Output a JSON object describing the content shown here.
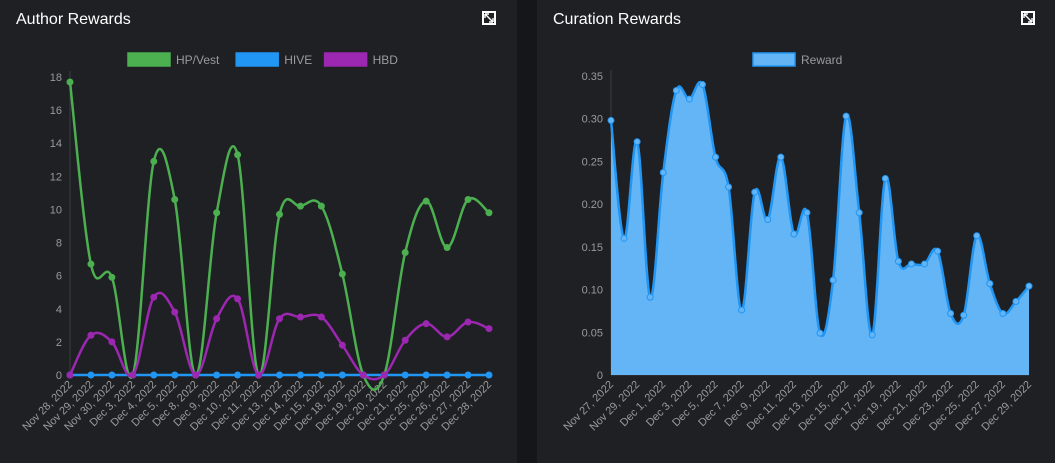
{
  "colors": {
    "hp_vest": "#4caf50",
    "hive": "#2196f3",
    "hbd": "#9c27b0",
    "reward": "#64b5f6",
    "reward_line": "#2196f3",
    "axis": "#3a3b40",
    "tick_text": "#9a9a9a"
  },
  "author_panel": {
    "title": "Author Rewards",
    "expand_icon": "expand-icon"
  },
  "curation_panel": {
    "title": "Curation Rewards",
    "expand_icon": "expand-icon"
  },
  "chart_data": [
    {
      "type": "line",
      "title": "Author Rewards",
      "legend_position": "top-center",
      "categories": [
        "Nov 28, 2022",
        "Nov 29, 2022",
        "Nov 30, 2022",
        "Dec 3, 2022",
        "Dec 4, 2022",
        "Dec 5, 2022",
        "Dec 8, 2022",
        "Dec 9, 2022",
        "Dec 10, 2022",
        "Dec 11, 2022",
        "Dec 13, 2022",
        "Dec 14, 2022",
        "Dec 15, 2022",
        "Dec 18, 2022",
        "Dec 19, 2022",
        "Dec 20, 2022",
        "Dec 21, 2022",
        "Dec 25, 2022",
        "Dec 26, 2022",
        "Dec 27, 2022",
        "Dec 28, 2022"
      ],
      "ylim": [
        0,
        18
      ],
      "yticks": [
        0,
        2,
        4,
        6,
        8,
        10,
        12,
        14,
        16,
        18
      ],
      "grid": false,
      "series": [
        {
          "name": "HP/Vest",
          "values": [
            17.7,
            6.7,
            5.9,
            0,
            12.9,
            10.6,
            0,
            9.8,
            13.3,
            0,
            9.7,
            10.2,
            10.2,
            6.1,
            0,
            0,
            7.4,
            10.5,
            7.7,
            10.6,
            9.8
          ]
        },
        {
          "name": "HIVE",
          "values": [
            0,
            0,
            0,
            0,
            0,
            0,
            0,
            0,
            0,
            0,
            0,
            0,
            0,
            0,
            0,
            0,
            0,
            0,
            0,
            0,
            0
          ]
        },
        {
          "name": "HBD",
          "values": [
            0,
            2.4,
            2.0,
            0,
            4.7,
            3.8,
            0,
            3.4,
            4.6,
            0,
            3.4,
            3.5,
            3.5,
            1.8,
            0,
            0,
            2.1,
            3.1,
            2.3,
            3.2,
            2.8
          ]
        }
      ]
    },
    {
      "type": "area",
      "title": "Curation Rewards",
      "legend_position": "top-center",
      "categories": [
        "Nov 27, 2022",
        "Nov 28, 2022",
        "Nov 29, 2022",
        "Nov 30, 2022",
        "Dec 1, 2022",
        "Dec 2, 2022",
        "Dec 3, 2022",
        "Dec 4, 2022",
        "Dec 5, 2022",
        "Dec 6, 2022",
        "Dec 7, 2022",
        "Dec 8, 2022",
        "Dec 9, 2022",
        "Dec 10, 2022",
        "Dec 11, 2022",
        "Dec 12, 2022",
        "Dec 13, 2022",
        "Dec 14, 2022",
        "Dec 15, 2022",
        "Dec 16, 2022",
        "Dec 17, 2022",
        "Dec 18, 2022",
        "Dec 19, 2022",
        "Dec 20, 2022",
        "Dec 21, 2022",
        "Dec 22, 2022",
        "Dec 23, 2022",
        "Dec 24, 2022",
        "Dec 25, 2022",
        "Dec 26, 2022",
        "Dec 27, 2022",
        "Dec 28, 2022",
        "Dec 29, 2022"
      ],
      "tick_labels_shown_every": 2,
      "ylim": [
        0,
        0.35
      ],
      "yticks": [
        0,
        0.05,
        0.1,
        0.15,
        0.2,
        0.25,
        0.3,
        0.35
      ],
      "ytick_labels": [
        "0",
        "0.05",
        "0.10",
        "0.15",
        "0.20",
        "0.25",
        "0.30",
        "0.35"
      ],
      "grid": false,
      "series": [
        {
          "name": "Reward",
          "values": [
            0.298,
            0.16,
            0.273,
            0.091,
            0.237,
            0.333,
            0.323,
            0.34,
            0.255,
            0.22,
            0.076,
            0.214,
            0.182,
            0.255,
            0.165,
            0.19,
            0.049,
            0.111,
            0.303,
            0.19,
            0.047,
            0.23,
            0.133,
            0.13,
            0.13,
            0.145,
            0.072,
            0.07,
            0.163,
            0.107,
            0.072,
            0.086,
            0.104
          ]
        }
      ]
    }
  ]
}
